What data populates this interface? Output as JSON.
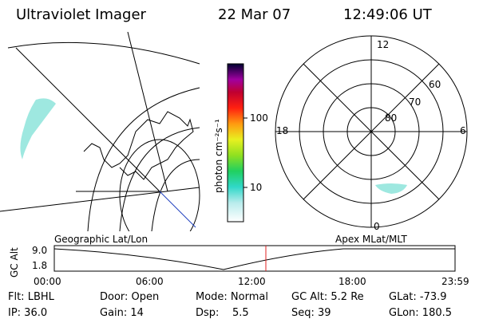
{
  "header": {
    "title": "Ultraviolet Imager",
    "date": "22 Mar 07",
    "time": "12:49:06 UT"
  },
  "colorbar": {
    "label": "photon cm⁻²s⁻¹",
    "ticks": [
      "100",
      "10"
    ]
  },
  "polar": {
    "lat_labels": [
      "80",
      "70",
      "60"
    ],
    "mlt_labels": {
      "top": "12",
      "bottom": "0",
      "left": "18",
      "right": "6"
    }
  },
  "timeline": {
    "left_title": "Geographic Lat/Lon",
    "right_title": "Apex MLat/MLT",
    "axis_label": "GC Alt",
    "y_ticks": [
      "9.0",
      "1.8"
    ],
    "x_ticks": [
      "00:00",
      "06:00",
      "12:00",
      "18:00",
      "23:59"
    ]
  },
  "info": [
    [
      "Flt: LBHL",
      "Door: Open",
      "Mode: Normal",
      "GC Alt: 5.2 Re",
      "GLat: -73.9"
    ],
    [
      "IP: 36.0",
      "Gain: 14",
      "Dsp:    5.5",
      "Seq: 39",
      "GLon: 180.5"
    ]
  ]
}
